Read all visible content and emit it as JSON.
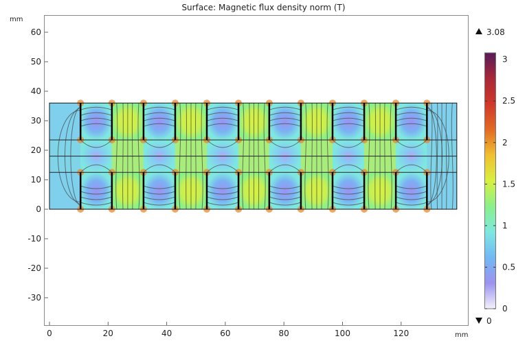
{
  "chart_data": {
    "type": "heatmap",
    "title": "Surface: Magnetic flux density norm (T)",
    "xlabel": "mm",
    "ylabel": "mm",
    "xlim": [
      -2,
      143
    ],
    "ylim": [
      -39,
      66
    ],
    "xticks": [
      0,
      20,
      40,
      60,
      80,
      100,
      120
    ],
    "yticks": [
      -30,
      -20,
      -10,
      0,
      10,
      20,
      30,
      40,
      50,
      60
    ],
    "domain_mm": {
      "x": [
        0,
        139
      ],
      "y": [
        0,
        36
      ]
    },
    "interfaces_y_mm": [
      12.5,
      18,
      23.5
    ],
    "magnet_boundaries_x_mm": [
      10.6,
      21.3,
      32.1,
      42.9,
      53.7,
      64.5,
      75.0,
      85.8,
      96.6,
      107.4,
      118.2,
      128.8
    ],
    "colorbar": {
      "min": 0,
      "max": 3.08,
      "max_label": "3.08",
      "min_label": "0",
      "ticks": [
        "3",
        "2.5",
        "2",
        "1.5",
        "1",
        "0.5",
        "0"
      ],
      "tick_values": [
        3,
        2.5,
        2,
        1.5,
        1,
        0.5,
        0
      ],
      "colormap": [
        "#f4f2fa",
        "#9b93f0",
        "#72b8f4",
        "#7ee8e0",
        "#8af08a",
        "#d8f040",
        "#f0c030",
        "#e26a24",
        "#d03828",
        "#a82838",
        "#5a1a5a"
      ]
    }
  }
}
